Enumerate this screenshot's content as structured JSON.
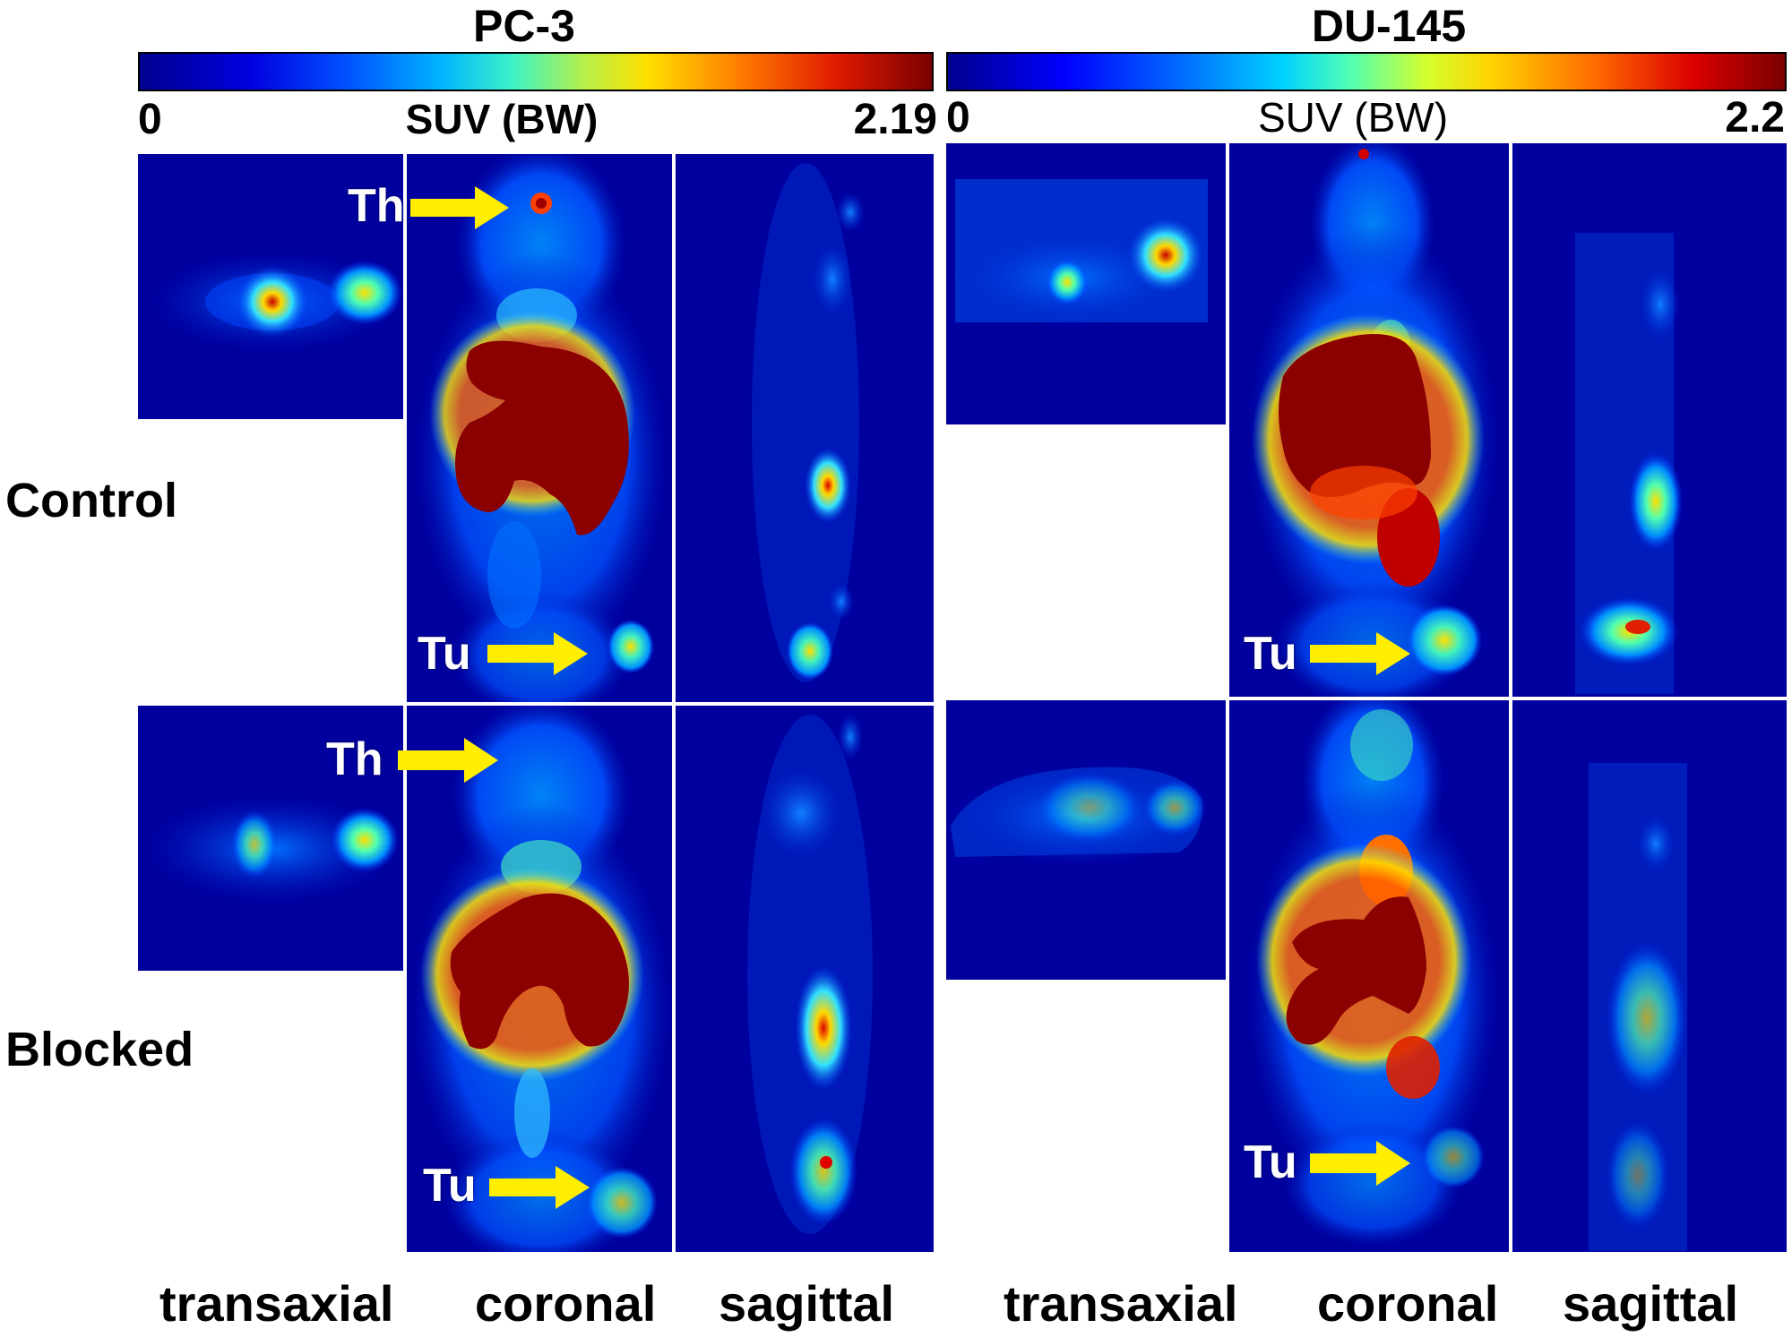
{
  "columns": [
    {
      "title": "PC-3",
      "colorbar": {
        "min": "0",
        "label": "SUV (BW)",
        "max": "2.19"
      }
    },
    {
      "title": "DU-145",
      "colorbar": {
        "min": "0",
        "label": "SUV (BW)",
        "max": "2.2"
      }
    }
  ],
  "rows": [
    {
      "label": "Control"
    },
    {
      "label": "Blocked"
    }
  ],
  "views": [
    "transaxial",
    "coronal",
    "sagittal"
  ],
  "annotations": {
    "thymus": "Th",
    "tumor": "Tu"
  },
  "colors": {
    "background": "#00009e",
    "arrow": "#ffee00",
    "saturated": "#8b0000"
  }
}
